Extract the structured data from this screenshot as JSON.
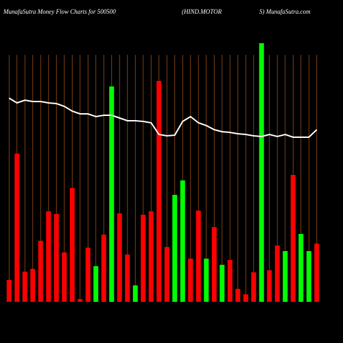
{
  "chart_data": {
    "type": "bar",
    "title": "MunafaSutra  Money Flow  Charts for 500500",
    "subtitle": [
      "(HIND.MOTOR",
      "S) MunafaSutra.com"
    ],
    "categories": [
      null,
      null,
      null,
      null,
      null,
      null,
      null,
      null,
      null,
      null,
      null,
      null,
      null,
      null,
      null,
      null,
      null,
      null,
      null,
      null,
      null,
      null,
      null,
      null,
      null,
      null,
      null,
      null,
      null,
      null,
      null,
      null,
      null,
      null,
      null,
      null,
      null,
      null,
      null,
      null
    ],
    "values": [
      32,
      216,
      44,
      48,
      89,
      132,
      128,
      72,
      166,
      4,
      79,
      52,
      98,
      314,
      129,
      69,
      24,
      127,
      132,
      322,
      80,
      156,
      177,
      63,
      133,
      63,
      109,
      54,
      61,
      19,
      11,
      43,
      377,
      46,
      82,
      74,
      185,
      99,
      74,
      85
    ],
    "colors": [
      "#ff0000",
      "#ff0000",
      "#ff0000",
      "#ff0000",
      "#ff0000",
      "#ff0000",
      "#ff0000",
      "#ff0000",
      "#ff0000",
      "#ff0000",
      "#ff0000",
      "#00ff00",
      "#ff0000",
      "#00ff00",
      "#ff0000",
      "#ff0000",
      "#00ff00",
      "#ff0000",
      "#ff0000",
      "#ff0000",
      "#ff0000",
      "#00ff00",
      "#00ff00",
      "#ff0000",
      "#ff0000",
      "#00ff00",
      "#ff0000",
      "#00ff00",
      "#ff0000",
      "#ff0000",
      "#ff0000",
      "#ff0000",
      "#00ff00",
      "#ff0000",
      "#ff0000",
      "#00ff00",
      "#ff0000",
      "#00ff00",
      "#00ff00",
      "#ff0000"
    ],
    "line": {
      "color": "#ffffff",
      "values": [
        297,
        290,
        294,
        292,
        292,
        290,
        289,
        285,
        278,
        274,
        274,
        270,
        272,
        272,
        268,
        264,
        264,
        263,
        261,
        244,
        242,
        243,
        263,
        270,
        261,
        257,
        251,
        248,
        247,
        245,
        244,
        242,
        241,
        244,
        241,
        244,
        240,
        240,
        240,
        251
      ]
    },
    "ylim": [
      0,
      380
    ],
    "grid_color": "#a0521a"
  }
}
